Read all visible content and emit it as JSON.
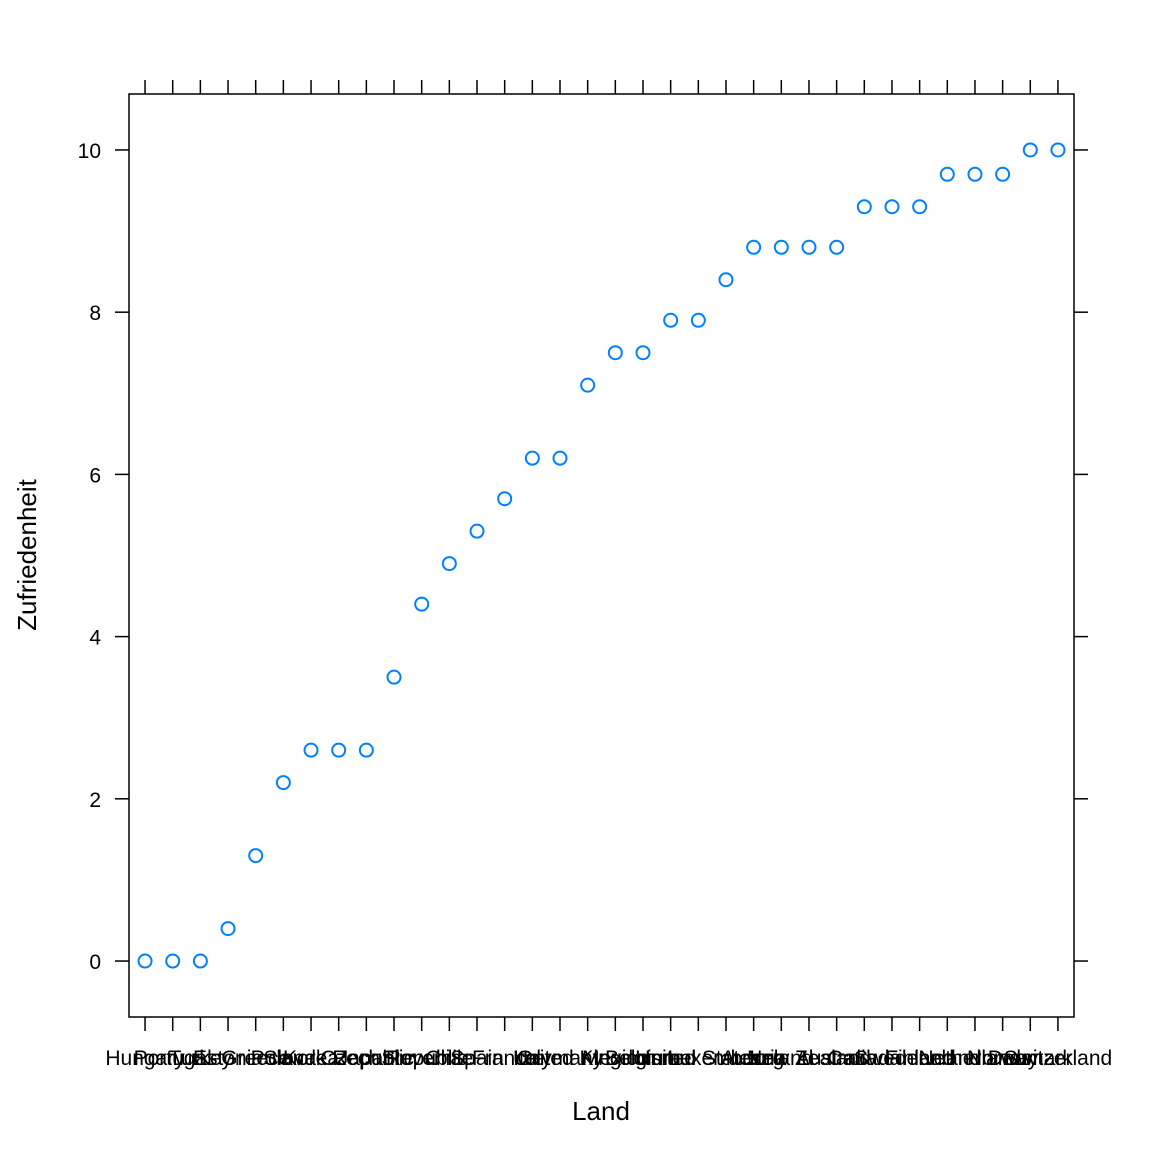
{
  "chart_data": {
    "type": "scatter",
    "xlabel": "Land",
    "ylabel": "Zufriedenheit",
    "categories": [
      "Hungary",
      "Portugal",
      "Turkey",
      "Estonia",
      "Greece",
      "Poland",
      "Korea",
      "Slovak Republic",
      "Japan",
      "Czech Republic",
      "Slovenia",
      "Chile",
      "Spain",
      "France",
      "Italy",
      "Germany",
      "United Kingdom",
      "Mexico",
      "Belgium",
      "Israel",
      "United States",
      "Luxembourg",
      "Austria",
      "Ireland",
      "New Zealand",
      "Australia",
      "Canada",
      "Sweden",
      "Finland",
      "Iceland",
      "Netherlands",
      "Norway",
      "Denmark",
      "Switzerland"
    ],
    "values": [
      0,
      0,
      0,
      0.4,
      1.3,
      2.2,
      2.6,
      2.6,
      2.6,
      3.5,
      4.4,
      4.9,
      5.3,
      5.7,
      6.2,
      6.2,
      7.1,
      7.5,
      7.5,
      7.9,
      7.9,
      8.4,
      8.8,
      8.8,
      8.8,
      8.8,
      9.3,
      9.3,
      9.3,
      9.7,
      9.7,
      9.7,
      10,
      10
    ],
    "color": "#0080ff",
    "ylim": [
      -0.69,
      10.69
    ],
    "yticks": [
      0,
      2,
      4,
      6,
      8,
      10
    ]
  }
}
